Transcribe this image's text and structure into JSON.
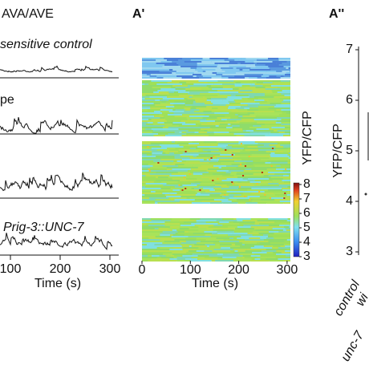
{
  "panel_a": {
    "title": "AVA/AVE",
    "conditions": [
      "sensitive control",
      "pe",
      "Prig-3::UNC-7"
    ],
    "x_axis": {
      "ticks": [
        100,
        200,
        300
      ],
      "label": "Time (s)"
    }
  },
  "panel_a_prime": {
    "label": "A'",
    "x_axis": {
      "ticks": [
        0,
        100,
        200,
        300
      ],
      "label": "Time (s)"
    },
    "colorbar": {
      "label": "YFP/CFP",
      "ticks": [
        3,
        4,
        5,
        6,
        7,
        8
      ]
    }
  },
  "panel_a_double_prime": {
    "label": "A''",
    "y_axis": {
      "label": "YFP/CFP",
      "ticks": [
        3,
        4,
        5,
        6,
        7
      ]
    },
    "group_labels": [
      "control",
      "wi",
      "unc-7"
    ]
  }
}
